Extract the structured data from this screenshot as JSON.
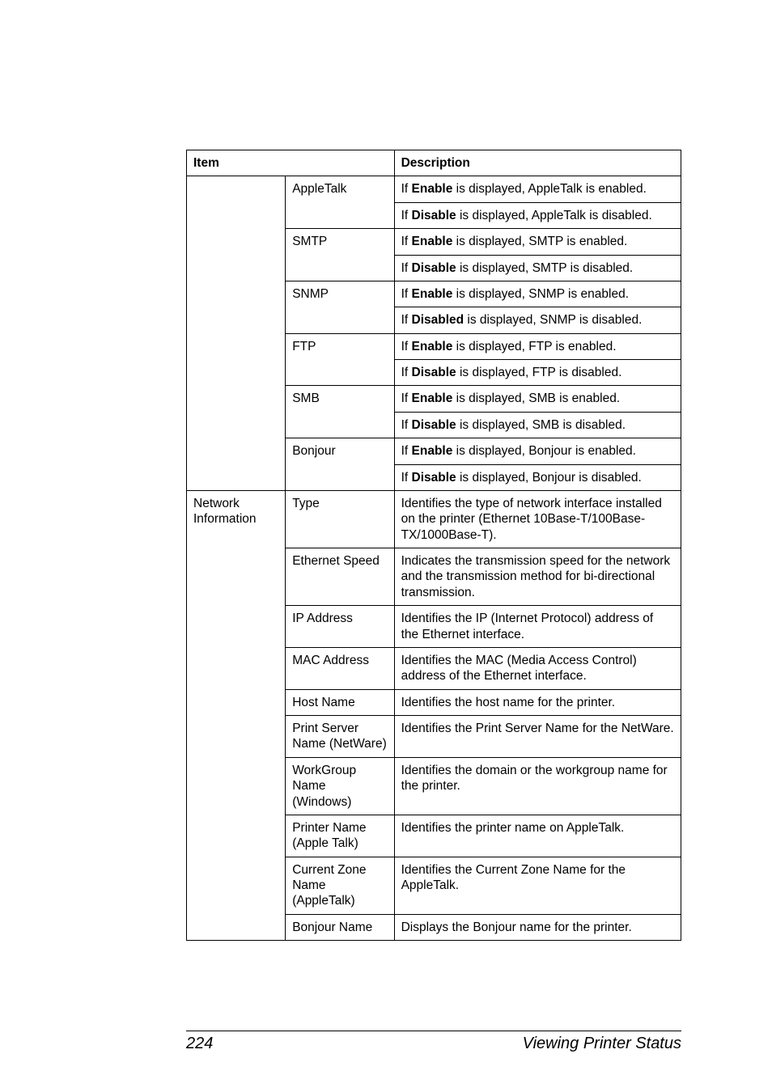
{
  "table": {
    "headers": {
      "item": "Item",
      "desc": "Description"
    },
    "rows": [
      {
        "col1": "",
        "col2": "AppleTalk",
        "col3_parts": [
          {
            "pre": "If ",
            "bold": "Enable",
            "post": " is displayed, AppleTalk is enabled."
          }
        ],
        "merge1": "no-top no-bottom",
        "merge2": "no-bottom"
      },
      {
        "col1": "",
        "col2": "",
        "col3_parts": [
          {
            "pre": "If ",
            "bold": "Disable",
            "post": " is displayed, AppleTalk is disabled."
          }
        ],
        "merge1": "no-top no-bottom",
        "merge2": "no-top"
      },
      {
        "col1": "",
        "col2": "SMTP",
        "col3_parts": [
          {
            "pre": "If ",
            "bold": "Enable",
            "post": " is displayed, SMTP is enabled."
          }
        ],
        "merge1": "no-top no-bottom",
        "merge2": "no-bottom"
      },
      {
        "col1": "",
        "col2": "",
        "col3_parts": [
          {
            "pre": "If ",
            "bold": "Disable",
            "post": " is displayed, SMTP is disabled."
          }
        ],
        "merge1": "no-top no-bottom",
        "merge2": "no-top"
      },
      {
        "col1": "",
        "col2": "SNMP",
        "col3_parts": [
          {
            "pre": "If ",
            "bold": "Enable",
            "post": " is displayed, SNMP is enabled."
          }
        ],
        "merge1": "no-top no-bottom",
        "merge2": "no-bottom"
      },
      {
        "col1": "",
        "col2": "",
        "col3_parts": [
          {
            "pre": "If ",
            "bold": "Disabled",
            "post": " is displayed, SNMP is disabled."
          }
        ],
        "merge1": "no-top no-bottom",
        "merge2": "no-top"
      },
      {
        "col1": "",
        "col2": "FTP",
        "col3_parts": [
          {
            "pre": "If ",
            "bold": "Enable",
            "post": " is displayed, FTP is enabled."
          }
        ],
        "merge1": "no-top no-bottom",
        "merge2": "no-bottom"
      },
      {
        "col1": "",
        "col2": "",
        "col3_parts": [
          {
            "pre": "If ",
            "bold": "Disable",
            "post": " is displayed, FTP is disabled."
          }
        ],
        "merge1": "no-top no-bottom",
        "merge2": "no-top"
      },
      {
        "col1": "",
        "col2": "SMB",
        "col3_parts": [
          {
            "pre": "If ",
            "bold": "Enable",
            "post": " is displayed, SMB is enabled."
          }
        ],
        "merge1": "no-top no-bottom",
        "merge2": "no-bottom"
      },
      {
        "col1": "",
        "col2": "",
        "col3_parts": [
          {
            "pre": "If ",
            "bold": "Disable",
            "post": " is displayed, SMB is disabled."
          }
        ],
        "merge1": "no-top no-bottom",
        "merge2": "no-top"
      },
      {
        "col1": "",
        "col2": "Bonjour",
        "col3_parts": [
          {
            "pre": "If ",
            "bold": "Enable",
            "post": " is displayed, Bonjour is enabled."
          }
        ],
        "merge1": "no-top no-bottom",
        "merge2": "no-bottom"
      },
      {
        "col1": "",
        "col2": "",
        "col3_parts": [
          {
            "pre": "If ",
            "bold": "Disable",
            "post": " is displayed, Bonjour is disabled."
          }
        ],
        "merge1": "no-top",
        "merge2": "no-top"
      },
      {
        "col1": "Network Information",
        "col2": "Type",
        "col3_plain": "Identifies the type of network interface installed on the printer (Ethernet 10Base-T/100Base-TX/1000Base-T).",
        "merge1": "no-bottom"
      },
      {
        "col1": "",
        "col2": "Ethernet Speed",
        "col3_plain": "Indicates the transmission speed for the network and the transmission method for bi-directional transmission.",
        "merge1": "no-top no-bottom"
      },
      {
        "col1": "",
        "col2": "IP Address",
        "col3_plain": "Identifies the IP (Internet Protocol) address of the Ethernet interface.",
        "merge1": "no-top no-bottom"
      },
      {
        "col1": "",
        "col2": "MAC Address",
        "col3_plain": "Identifies the MAC (Media Access Control) address of the Ethernet interface.",
        "merge1": "no-top no-bottom"
      },
      {
        "col1": "",
        "col2": "Host Name",
        "col3_plain": "Identifies the host name for the printer.",
        "merge1": "no-top no-bottom"
      },
      {
        "col1": "",
        "col2": "Print Server Name (NetWare)",
        "col3_plain": "Identifies the Print Server Name for the NetWare.",
        "merge1": "no-top no-bottom"
      },
      {
        "col1": "",
        "col2": "WorkGroup Name (Windows)",
        "col3_plain": "Identifies the domain or the workgroup name for the printer.",
        "merge1": "no-top no-bottom"
      },
      {
        "col1": "",
        "col2": "Printer Name (Apple Talk)",
        "col3_plain": "Identifies the printer name on AppleTalk.",
        "merge1": "no-top no-bottom"
      },
      {
        "col1": "",
        "col2": "Current Zone Name (AppleTalk)",
        "col3_plain": "Identifies the Current Zone Name for the AppleTalk.",
        "merge1": "no-top no-bottom"
      },
      {
        "col1": "",
        "col2": "Bonjour Name",
        "col3_plain": "Displays the Bonjour name for the printer.",
        "merge1": "no-top"
      }
    ]
  },
  "footer": {
    "pageNumber": "224",
    "title": "Viewing Printer Status"
  }
}
